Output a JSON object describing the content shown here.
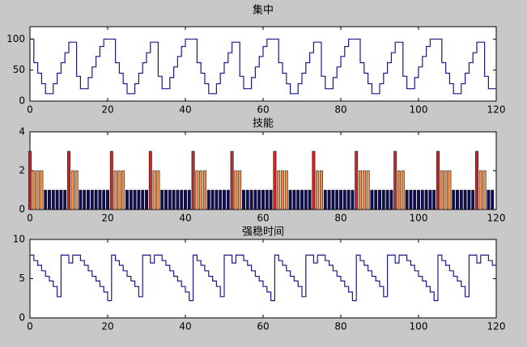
{
  "chart_data": [
    {
      "type": "stairs",
      "title": "集中",
      "color": "#1a1a8c",
      "x": [
        0,
        1,
        2,
        3,
        4,
        5,
        6,
        7,
        8,
        9,
        10,
        11,
        12,
        13,
        14,
        15,
        16,
        17,
        18,
        19,
        20,
        21,
        22,
        23,
        24,
        25,
        26,
        27,
        28,
        29,
        30,
        31,
        32,
        33,
        34,
        35,
        36,
        37,
        38,
        39,
        40,
        41,
        42,
        43,
        44,
        45,
        46,
        47,
        48,
        49,
        50,
        51,
        52,
        53,
        54,
        55,
        56,
        57,
        58,
        59,
        60,
        61,
        62,
        63,
        64,
        65,
        66,
        67,
        68,
        69,
        70,
        71,
        72,
        73,
        74,
        75,
        76,
        77,
        78,
        79,
        80,
        81,
        82,
        83,
        84,
        85,
        86,
        87,
        88,
        89,
        90,
        91,
        92,
        93,
        94,
        95,
        96,
        97,
        98,
        99,
        100,
        101,
        102,
        103,
        104,
        105,
        106,
        107,
        108,
        109,
        110,
        111,
        112,
        113,
        114,
        115,
        116,
        117,
        118,
        119
      ],
      "values": [
        100,
        62,
        45,
        28,
        12,
        12,
        28,
        45,
        62,
        78,
        95,
        95,
        40,
        20,
        20,
        38,
        55,
        72,
        88,
        100,
        100,
        100,
        62,
        45,
        28,
        12,
        12,
        28,
        45,
        62,
        78,
        95,
        95,
        40,
        20,
        20,
        38,
        55,
        72,
        88,
        100,
        100,
        100,
        62,
        45,
        28,
        12,
        12,
        28,
        45,
        62,
        78,
        95,
        95,
        40,
        20,
        20,
        38,
        55,
        72,
        88,
        100,
        100,
        100,
        62,
        45,
        28,
        12,
        12,
        28,
        45,
        62,
        78,
        95,
        95,
        40,
        20,
        20,
        38,
        55,
        72,
        88,
        100,
        100,
        100,
        62,
        45,
        28,
        12,
        12,
        28,
        45,
        62,
        78,
        95,
        95,
        40,
        20,
        20,
        38,
        55,
        72,
        88,
        100,
        100,
        100,
        62,
        45,
        28,
        12,
        12,
        28,
        45,
        62,
        78,
        95,
        95,
        40,
        20,
        20
      ],
      "xlim": [
        0,
        120
      ],
      "ylim": [
        0,
        120
      ],
      "xticks": [
        0,
        20,
        40,
        60,
        80,
        100,
        120
      ],
      "yticks": [
        0,
        50,
        100
      ]
    },
    {
      "type": "bar",
      "title": "技能",
      "level_colors": [
        "#0e0e5a",
        "#f0904a",
        "#c42a2a"
      ],
      "x": [
        0,
        1,
        2,
        3,
        4,
        5,
        6,
        7,
        8,
        9,
        10,
        11,
        12,
        13,
        14,
        15,
        16,
        17,
        18,
        19,
        20,
        21,
        22,
        23,
        24,
        25,
        26,
        27,
        28,
        29,
        30,
        31,
        32,
        33,
        34,
        35,
        36,
        37,
        38,
        39,
        40,
        41,
        42,
        43,
        44,
        45,
        46,
        47,
        48,
        49,
        50,
        51,
        52,
        53,
        54,
        55,
        56,
        57,
        58,
        59,
        60,
        61,
        62,
        63,
        64,
        65,
        66,
        67,
        68,
        69,
        70,
        71,
        72,
        73,
        74,
        75,
        76,
        77,
        78,
        79,
        80,
        81,
        82,
        83,
        84,
        85,
        86,
        87,
        88,
        89,
        90,
        91,
        92,
        93,
        94,
        95,
        96,
        97,
        98,
        99,
        100,
        101,
        102,
        103,
        104,
        105,
        106,
        107,
        108,
        109,
        110,
        111,
        112,
        113,
        114,
        115,
        116,
        117,
        118,
        119
      ],
      "values": [
        3,
        2,
        2,
        2,
        1,
        1,
        1,
        1,
        1,
        1,
        3,
        2,
        2,
        1,
        1,
        1,
        1,
        1,
        1,
        1,
        1,
        3,
        2,
        2,
        2,
        1,
        1,
        1,
        1,
        1,
        1,
        3,
        2,
        2,
        1,
        1,
        1,
        1,
        1,
        1,
        1,
        1,
        3,
        2,
        2,
        2,
        1,
        1,
        1,
        1,
        1,
        1,
        3,
        2,
        2,
        1,
        1,
        1,
        1,
        1,
        1,
        1,
        1,
        3,
        2,
        2,
        2,
        1,
        1,
        1,
        1,
        1,
        1,
        3,
        2,
        2,
        1,
        1,
        1,
        1,
        1,
        1,
        1,
        1,
        3,
        2,
        2,
        2,
        1,
        1,
        1,
        1,
        1,
        1,
        3,
        2,
        2,
        1,
        1,
        1,
        1,
        1,
        1,
        1,
        1,
        3,
        2,
        2,
        2,
        1,
        1,
        1,
        1,
        1,
        1,
        3,
        2,
        2,
        1,
        1
      ],
      "xlim": [
        0,
        120
      ],
      "ylim": [
        0,
        4
      ],
      "xticks": [
        0,
        20,
        40,
        60,
        80,
        100,
        120
      ],
      "yticks": [
        0,
        2,
        4
      ]
    },
    {
      "type": "stairs",
      "title": "强稳时间",
      "color": "#1a1a8c",
      "x": [
        0,
        1,
        2,
        3,
        4,
        5,
        6,
        7,
        8,
        9,
        10,
        11,
        12,
        13,
        14,
        15,
        16,
        17,
        18,
        19,
        20,
        21,
        22,
        23,
        24,
        25,
        26,
        27,
        28,
        29,
        30,
        31,
        32,
        33,
        34,
        35,
        36,
        37,
        38,
        39,
        40,
        41,
        42,
        43,
        44,
        45,
        46,
        47,
        48,
        49,
        50,
        51,
        52,
        53,
        54,
        55,
        56,
        57,
        58,
        59,
        60,
        61,
        62,
        63,
        64,
        65,
        66,
        67,
        68,
        69,
        70,
        71,
        72,
        73,
        74,
        75,
        76,
        77,
        78,
        79,
        80,
        81,
        82,
        83,
        84,
        85,
        86,
        87,
        88,
        89,
        90,
        91,
        92,
        93,
        94,
        95,
        96,
        97,
        98,
        99,
        100,
        101,
        102,
        103,
        104,
        105,
        106,
        107,
        108,
        109,
        110,
        111,
        112,
        113,
        114,
        115,
        116,
        117,
        118,
        119
      ],
      "values": [
        8,
        7.3,
        6.7,
        6,
        5.3,
        4.7,
        4,
        2.7,
        8,
        8,
        7,
        8,
        8,
        7.3,
        6.7,
        6,
        5.3,
        4.7,
        4,
        3.3,
        2.2,
        8,
        7.3,
        6.7,
        6,
        5.3,
        4.7,
        4,
        2.7,
        8,
        8,
        7,
        8,
        8,
        7.3,
        6.7,
        6,
        5.3,
        4.7,
        4,
        3.3,
        2.2,
        8,
        7.3,
        6.7,
        6,
        5.3,
        4.7,
        4,
        2.7,
        8,
        8,
        7,
        8,
        8,
        7.3,
        6.7,
        6,
        5.3,
        4.7,
        4,
        3.3,
        2.2,
        8,
        7.3,
        6.7,
        6,
        5.3,
        4.7,
        4,
        2.7,
        8,
        8,
        7,
        8,
        8,
        7.3,
        6.7,
        6,
        5.3,
        4.7,
        4,
        3.3,
        2.2,
        8,
        7.3,
        6.7,
        6,
        5.3,
        4.7,
        4,
        2.7,
        8,
        8,
        7,
        8,
        8,
        7.3,
        6.7,
        6,
        5.3,
        4.7,
        4,
        3.3,
        2.2,
        8,
        7.3,
        6.7,
        6,
        5.3,
        4.7,
        4,
        2.7,
        8,
        8,
        7,
        8,
        8,
        7.3,
        6.7
      ],
      "xlim": [
        0,
        120
      ],
      "ylim": [
        0,
        10
      ],
      "xticks": [
        0,
        20,
        40,
        60,
        80,
        100,
        120
      ],
      "yticks": [
        0,
        5,
        10
      ]
    }
  ]
}
